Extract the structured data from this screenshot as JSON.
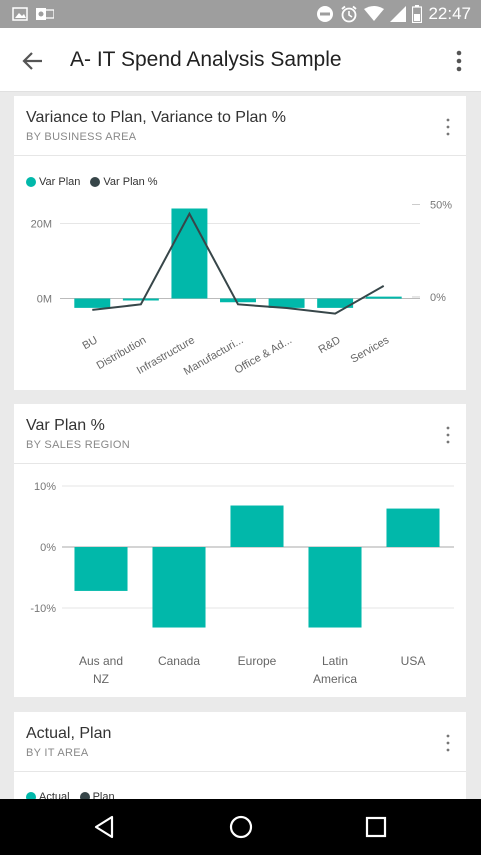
{
  "status_bar": {
    "time": "22:47",
    "icons": [
      "gallery-icon",
      "outlook-icon",
      "dnd-icon",
      "alarm-icon",
      "wifi-icon",
      "signal-icon",
      "battery-icon"
    ]
  },
  "app_bar": {
    "title": "A- IT Spend Analysis Sample"
  },
  "colors": {
    "accent": "#01b8aa",
    "line": "#374649",
    "grid": "#e6e6e6"
  },
  "cards": {
    "c1": {
      "title": "Variance to Plan, Variance to Plan %",
      "subtitle": "BY BUSINESS AREA",
      "legend": [
        "Var Plan",
        "Var Plan %"
      ]
    },
    "c2": {
      "title": "Var Plan %",
      "subtitle": "BY SALES REGION"
    },
    "c3": {
      "title": "Actual, Plan",
      "subtitle": "BY IT AREA",
      "legend": [
        "Actual",
        "Plan"
      ]
    }
  },
  "chart_data": [
    {
      "type": "bar",
      "categories": [
        "BU",
        "Distribution",
        "Infrastructure",
        "Manufacturi...",
        "Office & Ad...",
        "R&D",
        "Services"
      ],
      "series": [
        {
          "name": "Var Plan",
          "type": "bar",
          "axis": "left",
          "values": [
            -2.5,
            -0.5,
            24,
            -1,
            -2.5,
            -2.5,
            0.5
          ]
        },
        {
          "name": "Var Plan %",
          "type": "line",
          "axis": "right",
          "values": [
            -7,
            -4,
            45,
            -4,
            -6,
            -9,
            6
          ]
        }
      ],
      "y_left": {
        "ticks": [
          "20M",
          "0M"
        ],
        "tick_values": [
          20,
          0
        ],
        "range": [
          -6,
          30
        ]
      },
      "y_right": {
        "ticks": [
          "50%",
          "0%"
        ],
        "tick_values": [
          50,
          0
        ],
        "range": [
          -13,
          60
        ]
      }
    },
    {
      "type": "bar",
      "categories": [
        "Aus and NZ",
        "Canada",
        "Europe",
        "Latin America",
        "USA"
      ],
      "category_lines": [
        [
          "Aus and",
          "NZ"
        ],
        [
          "Canada"
        ],
        [
          "Europe"
        ],
        [
          "Latin",
          "America"
        ],
        [
          "USA"
        ]
      ],
      "series": [
        {
          "name": "Var Plan %",
          "values": [
            -7.2,
            -13.2,
            6.8,
            -13.2,
            6.3
          ]
        }
      ],
      "ylim": [
        -14,
        11
      ],
      "y_ticks": [
        "10%",
        "0%",
        "-10%"
      ],
      "y_tick_values": [
        10,
        0,
        -10
      ]
    }
  ]
}
